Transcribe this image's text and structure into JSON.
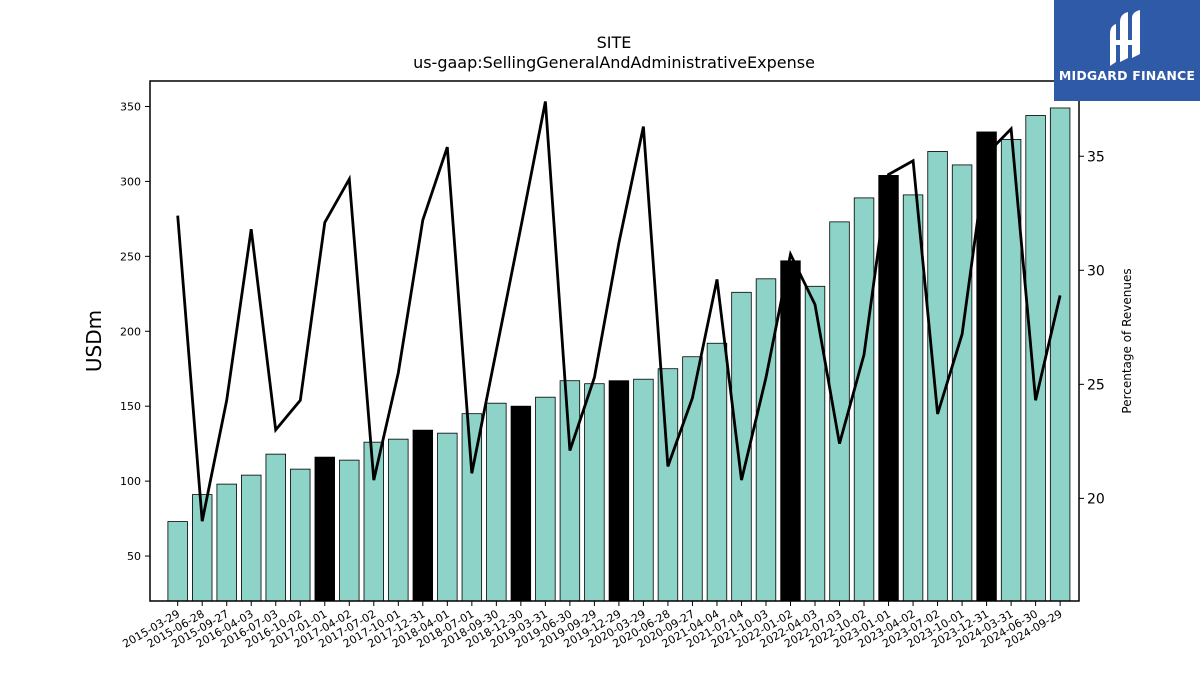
{
  "chart_data": {
    "type": "bar",
    "title": "SITE",
    "subtitle": "us-gaap:SellingGeneralAndAdministrativeExpense",
    "ylabel": "USDm",
    "y2label": "Percentage of Revenues",
    "ylim": [
      20,
      367
    ],
    "y2lim": [
      15.5,
      38.3
    ],
    "yticks": [
      50,
      100,
      150,
      200,
      250,
      300,
      350
    ],
    "y2ticks": [
      20,
      25,
      30,
      35
    ],
    "categories": [
      "2015-03-29",
      "2015-06-28",
      "2015-09-27",
      "2016-04-03",
      "2016-07-03",
      "2016-10-02",
      "2017-01-01",
      "2017-04-02",
      "2017-07-02",
      "2017-10-01",
      "2017-12-31",
      "2018-04-01",
      "2018-07-01",
      "2018-09-30",
      "2018-12-30",
      "2019-03-31",
      "2019-06-30",
      "2019-09-29",
      "2019-12-29",
      "2020-03-29",
      "2020-06-28",
      "2020-09-27",
      "2021-04-04",
      "2021-07-04",
      "2021-10-03",
      "2022-01-02",
      "2022-04-03",
      "2022-07-03",
      "2022-10-02",
      "2023-01-01",
      "2023-04-02",
      "2023-07-02",
      "2023-10-01",
      "2023-12-31",
      "2024-03-31",
      "2024-06-30",
      "2024-09-29"
    ],
    "series": [
      {
        "kind": "bar",
        "values": [
          73,
          91,
          98,
          104,
          118,
          108,
          116,
          114,
          126,
          128,
          134,
          132,
          145,
          152,
          150,
          156,
          167,
          165,
          167,
          168,
          175,
          183,
          192,
          226,
          235,
          247,
          230,
          273,
          289,
          304,
          291,
          320,
          311,
          333,
          328,
          344,
          349
        ],
        "highlight": [
          false,
          false,
          false,
          false,
          false,
          false,
          true,
          false,
          false,
          false,
          true,
          false,
          false,
          false,
          true,
          false,
          false,
          false,
          true,
          false,
          false,
          false,
          false,
          false,
          false,
          true,
          false,
          false,
          false,
          true,
          false,
          false,
          false,
          true,
          false,
          false,
          false
        ]
      },
      {
        "kind": "line",
        "axis": "right",
        "values": [
          32.4,
          19.0,
          24.3,
          31.8,
          23.0,
          24.3,
          32.1,
          34.0,
          20.8,
          25.5,
          32.2,
          35.4,
          21.1,
          26.5,
          31.9,
          37.4,
          22.1,
          25.3,
          31.2,
          36.3,
          21.4,
          24.4,
          29.6,
          20.8,
          25.3,
          30.7,
          28.5,
          22.4,
          26.3,
          34.2,
          34.8,
          23.7,
          27.2,
          35.1,
          36.2,
          24.3,
          28.9
        ]
      }
    ],
    "colors": {
      "bar": "#8dd3c7",
      "bar_highlight": "#000000",
      "line": "#000000",
      "brand": "#2e5aa8"
    },
    "grid": false,
    "legend": "none"
  },
  "brand": {
    "name": "MIDGARD FINANCE",
    "logo_icon": "mf-monogram-icon"
  }
}
